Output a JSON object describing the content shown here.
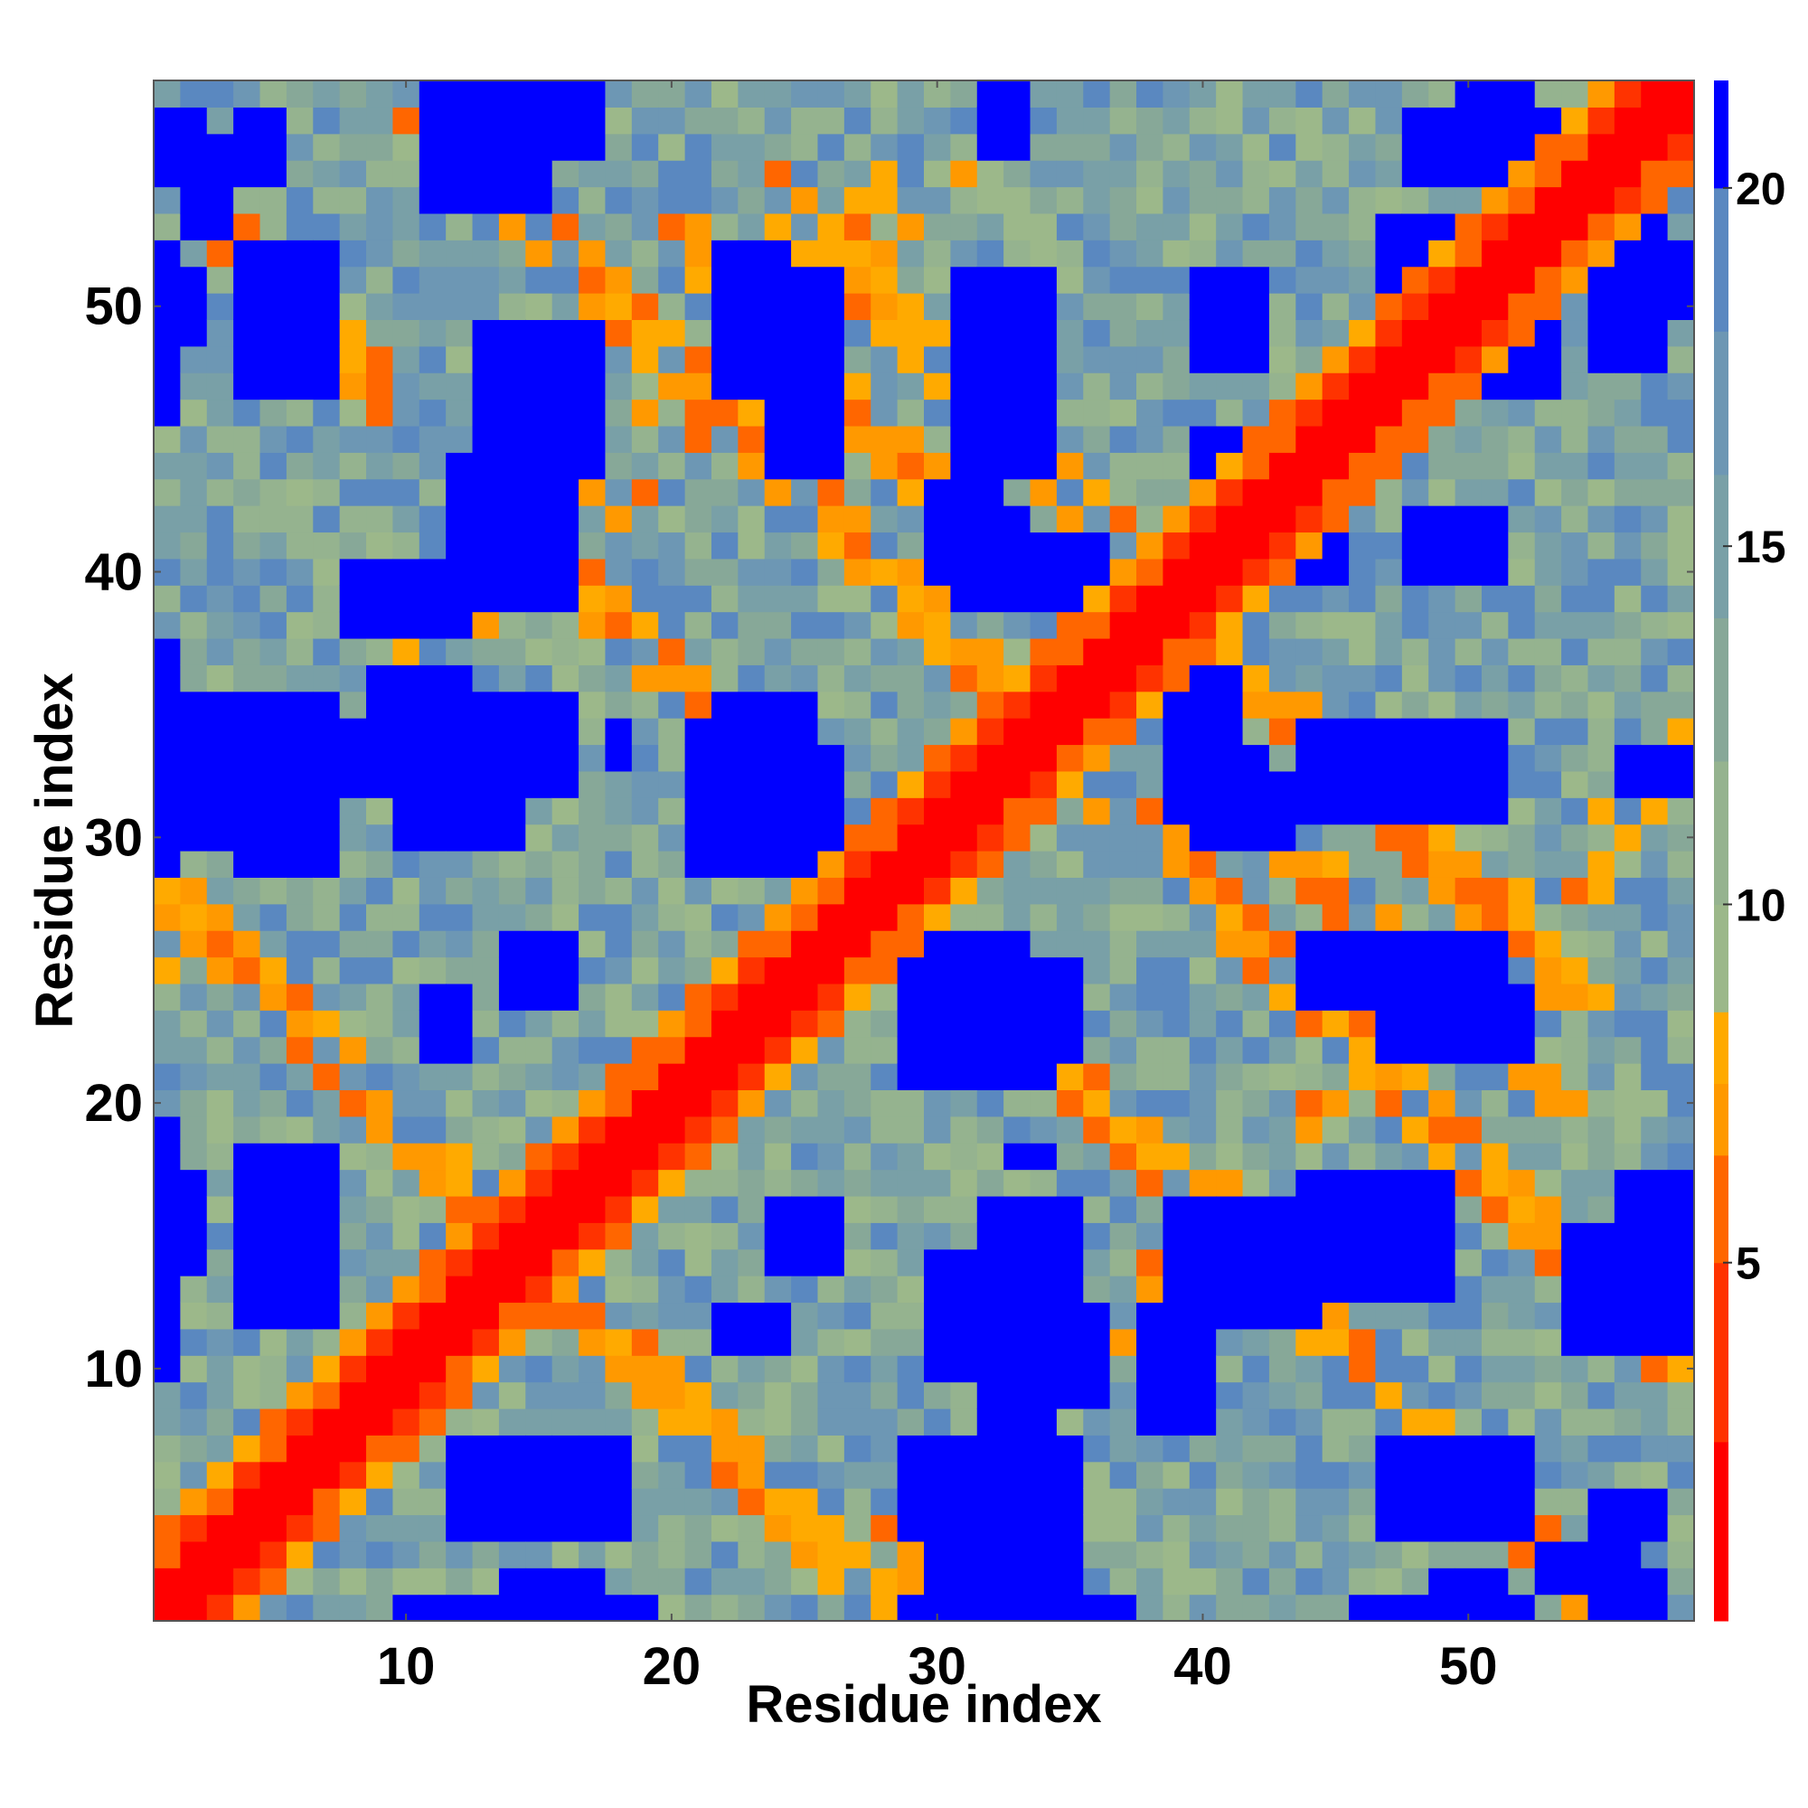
{
  "chart_data": {
    "type": "heatmap",
    "title": "",
    "xlabel": "Residue index",
    "ylabel": "Residue index",
    "n_residues": 58,
    "xlim": [
      0.5,
      58.5
    ],
    "ylim": [
      0.5,
      58.5
    ],
    "x_ticks": [
      10,
      20,
      30,
      40,
      50
    ],
    "y_ticks": [
      10,
      20,
      30,
      40,
      50
    ],
    "colorbar": {
      "range": [
        0,
        21.5
      ],
      "ticks": [
        5,
        10,
        15,
        20
      ],
      "color_bins": [
        {
          "from": 0,
          "to": 2.5,
          "color": "#ff0000"
        },
        {
          "from": 2.5,
          "to": 5,
          "color": "#ff3300"
        },
        {
          "from": 5,
          "to": 6.5,
          "color": "#ff6600"
        },
        {
          "from": 6.5,
          "to": 7.5,
          "color": "#ff9900"
        },
        {
          "from": 7.5,
          "to": 8.5,
          "color": "#ffaa00"
        },
        {
          "from": 8.5,
          "to": 10,
          "color": "#9cb88a"
        },
        {
          "from": 10,
          "to": 12,
          "color": "#95b38f"
        },
        {
          "from": 12,
          "to": 14,
          "color": "#87a898"
        },
        {
          "from": 14,
          "to": 16,
          "color": "#79a0a7"
        },
        {
          "from": 16,
          "to": 18,
          "color": "#6d97b4"
        },
        {
          "from": 18,
          "to": 20,
          "color": "#5a88c0"
        },
        {
          "from": 20,
          "to": 21.5,
          "color": "#0000ff"
        }
      ]
    },
    "unit": "",
    "blue_blocks": [
      [
        1,
        2,
        55,
        57
      ],
      [
        1,
        1,
        46,
        52
      ],
      [
        1,
        1,
        29,
        35
      ],
      [
        1,
        1,
        13,
        19
      ],
      [
        1,
        1,
        10,
        12
      ],
      [
        4,
        7,
        29,
        35
      ],
      [
        4,
        7,
        12,
        18
      ],
      [
        4,
        7,
        48,
        52
      ],
      [
        11,
        17,
        1,
        1
      ],
      [
        14,
        17,
        2,
        2
      ],
      [
        13,
        18,
        4,
        6
      ],
      [
        15,
        17,
        7,
        7
      ],
      [
        14,
        16,
        24,
        26
      ],
      [
        14,
        16,
        39,
        43
      ],
      [
        15,
        16,
        56,
        57
      ],
      [
        11,
        14,
        56,
        58
      ],
      [
        14,
        17,
        56,
        58
      ],
      [
        22,
        24,
        11,
        12
      ],
      [
        22,
        24,
        47,
        52
      ],
      [
        23,
        25,
        31,
        35
      ],
      [
        22,
        25,
        29,
        35
      ],
      [
        21,
        26,
        29,
        33
      ],
      [
        30,
        34,
        1,
        3
      ],
      [
        32,
        34,
        4,
        8
      ],
      [
        32,
        35,
        11,
        16
      ],
      [
        33,
        35,
        1,
        4
      ],
      [
        30,
        34,
        22,
        24
      ],
      [
        30,
        33,
        40,
        42
      ],
      [
        32,
        34,
        21,
        22
      ],
      [
        39,
        41,
        13,
        15
      ],
      [
        39,
        41,
        31,
        34
      ],
      [
        40,
        42,
        48,
        51
      ],
      [
        41,
        44,
        12,
        14
      ],
      [
        40,
        43,
        30,
        32
      ],
      [
        47,
        50,
        4,
        7
      ],
      [
        47,
        50,
        22,
        25
      ],
      [
        48,
        50,
        40,
        42
      ],
      [
        50,
        51,
        41,
        42
      ],
      [
        54,
        57,
        11,
        15
      ],
      [
        55,
        57,
        48,
        50
      ],
      [
        56,
        58,
        32,
        33
      ],
      [
        55,
        57,
        4,
        5
      ],
      [
        50,
        52,
        57,
        58
      ],
      [
        1,
        2,
        49,
        51
      ],
      [
        2,
        3,
        53,
        55
      ],
      [
        3,
        4,
        55,
        56
      ],
      [
        5,
        6,
        49,
        52
      ],
      [
        8,
        12,
        38,
        40
      ],
      [
        9,
        12,
        32,
        36
      ],
      [
        10,
        14,
        30,
        33
      ],
      [
        13,
        17,
        44,
        49
      ],
      [
        24,
        26,
        44,
        51
      ],
      [
        31,
        34,
        44,
        51
      ],
      [
        33,
        36,
        39,
        41
      ],
      [
        40,
        43,
        41,
        45
      ],
      [
        47,
        50,
        49,
        53
      ],
      [
        55,
        57,
        51,
        53
      ],
      [
        1,
        1,
        36,
        37
      ],
      [
        18,
        18,
        33,
        34
      ],
      [
        26,
        26,
        31,
        31
      ]
    ]
  }
}
